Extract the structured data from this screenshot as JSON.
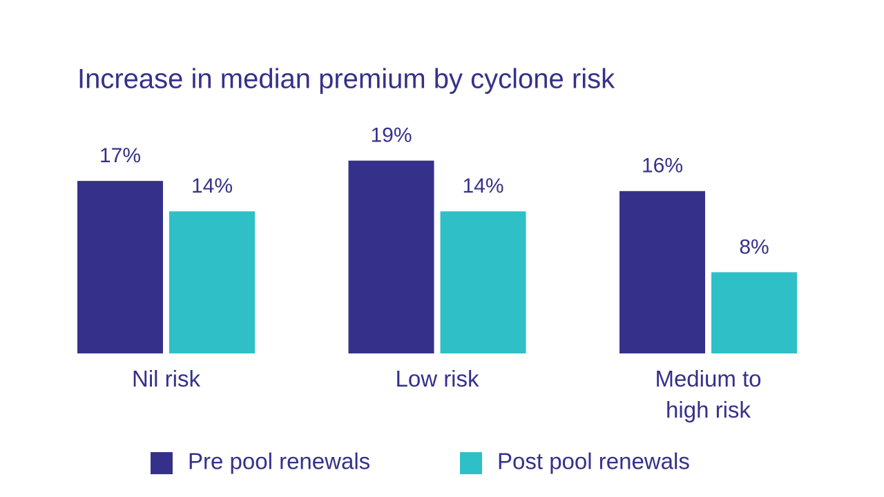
{
  "chart_data": {
    "type": "bar",
    "title": "Increase in median premium by cyclone risk",
    "categories": [
      "Nil risk",
      "Low risk",
      "Medium to high risk"
    ],
    "series": [
      {
        "name": "Pre pool renewals",
        "color": "#35318a",
        "values": [
          17,
          19,
          16
        ],
        "value_labels": [
          "17%",
          "19%",
          "16%"
        ]
      },
      {
        "name": "Post pool renewals",
        "color": "#2fbfc6",
        "values": [
          14,
          14,
          8
        ],
        "value_labels": [
          "14%",
          "14%",
          "8%"
        ]
      }
    ]
  }
}
